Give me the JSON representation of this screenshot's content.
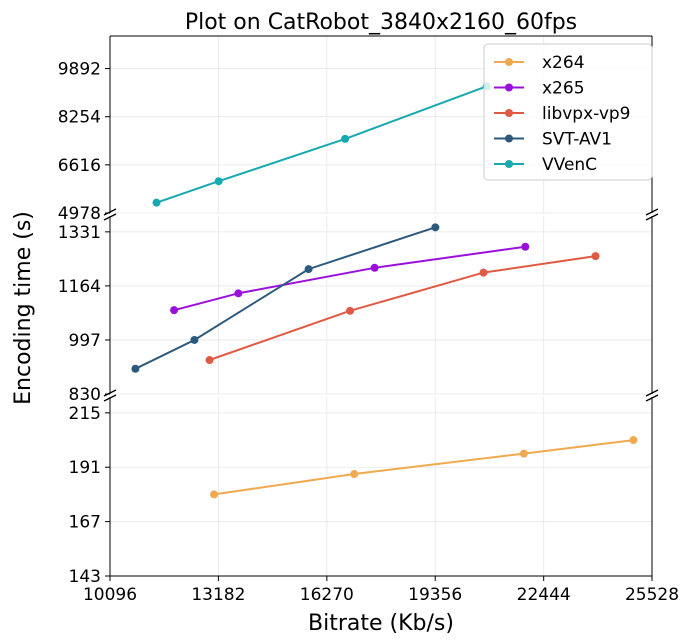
{
  "chart_data": {
    "type": "line",
    "title": "Plot on CatRobot_3840x2160_60fps",
    "xlabel": "Bitrate (Kb/s)",
    "ylabel": "Encoding time (s)",
    "xlim": [
      10096,
      25528
    ],
    "xticks": [
      "10096",
      "13182",
      "16270",
      "19356",
      "22444",
      "25528"
    ],
    "xtick_values": [
      10096,
      13182,
      16270,
      19356,
      22444,
      25528
    ],
    "grid": true,
    "legend_position": "top-right",
    "panels": [
      {
        "ylim": [
          4978,
          11000
        ],
        "yticks": [
          "4978",
          "6616",
          "8254",
          "9892"
        ],
        "ytick_values": [
          4978,
          6616,
          8254,
          9892
        ]
      },
      {
        "ylim": [
          830,
          1380
        ],
        "yticks": [
          "830",
          "997",
          "1164",
          "1331"
        ],
        "ytick_values": [
          830,
          997,
          1164,
          1331
        ]
      },
      {
        "ylim": [
          143,
          222
        ],
        "yticks": [
          "143",
          "167",
          "191",
          "215"
        ],
        "ytick_values": [
          143,
          167,
          191,
          215
        ]
      }
    ],
    "series": [
      {
        "name": "x264",
        "color": "#f0a94e",
        "panel": 2,
        "x": [
          13060,
          17050,
          21880,
          25000
        ],
        "y": [
          179,
          188,
          197,
          203
        ]
      },
      {
        "name": "x265",
        "color": "#9b0fdc",
        "panel": 1,
        "x": [
          11920,
          13750,
          17630,
          21920
        ],
        "y": [
          1089,
          1141,
          1220,
          1285
        ]
      },
      {
        "name": "libvpx-vp9",
        "color": "#e05a43",
        "panel": 1,
        "x": [
          12930,
          16930,
          20730,
          23920
        ],
        "y": [
          935,
          1087,
          1205,
          1256
        ]
      },
      {
        "name": "SVT-AV1",
        "color": "#2c5a7c",
        "panel": 1,
        "x": [
          10820,
          12500,
          15750,
          19360
        ],
        "y": [
          908,
          997,
          1216,
          1345
        ]
      },
      {
        "name": "VVenC",
        "color": "#17a8b0",
        "panel": 0,
        "x": [
          11420,
          13190,
          16790,
          20820
        ],
        "y": [
          5330,
          6060,
          7500,
          9290
        ]
      }
    ]
  }
}
